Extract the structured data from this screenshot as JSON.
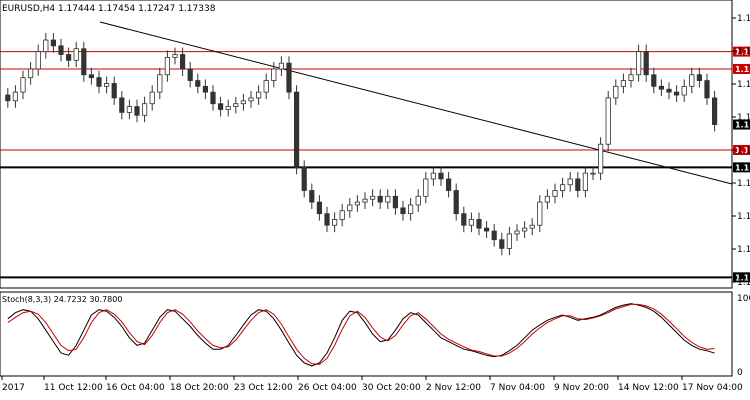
{
  "chart_data": {
    "type": "candlestick",
    "title": "EURUSD,H4  1.17444 1.17454 1.17247 1.17338",
    "x_ticks": [
      "2017",
      "11 Oct 12:00",
      "16 Oct 04:00",
      "18 Oct 20:00",
      "23 Oct 12:00",
      "26 Oct 04:00",
      "30 Oct 20:00",
      "2 Nov 12:00",
      "7 Nov 04:00",
      "9 Nov 20:00",
      "14 Nov 12:00",
      "17 Nov 04:00"
    ],
    "right_axis_labels": [
      "1.1",
      "1.1",
      "1.1",
      "1.1",
      "1.1",
      "1.1",
      "1.1",
      "1.1",
      "1.1"
    ],
    "resistance_levels": [
      {
        "label": "1.1",
        "price": 1.186,
        "color": "#cc0000"
      },
      {
        "label": "1.1",
        "price": 1.183,
        "color": "#cc0000"
      },
      {
        "label": "1.1",
        "price": 1.169,
        "color": "#cc0000"
      },
      {
        "label": "1.1",
        "price": 1.166,
        "color": "#000000"
      },
      {
        "label": "1.1",
        "price": 1.147,
        "color": "#000000"
      }
    ],
    "current_price_label": "1.1",
    "closes": [
      1.1775,
      1.179,
      1.1815,
      1.183,
      1.186,
      1.188,
      1.187,
      1.1855,
      1.1845,
      1.1865,
      1.182,
      1.1815,
      1.18,
      1.1805,
      1.178,
      1.1755,
      1.1765,
      1.175,
      1.177,
      1.179,
      1.182,
      1.185,
      1.1855,
      1.183,
      1.181,
      1.18,
      1.179,
      1.177,
      1.176,
      1.1765,
      1.177,
      1.1775,
      1.178,
      1.179,
      1.181,
      1.183,
      1.184,
      1.179,
      1.166,
      1.162,
      1.16,
      1.158,
      1.156,
      1.157,
      1.1585,
      1.1595,
      1.16,
      1.1605,
      1.161,
      1.16,
      1.161,
      1.159,
      1.158,
      1.1595,
      1.161,
      1.164,
      1.165,
      1.164,
      1.162,
      1.158,
      1.156,
      1.157,
      1.1555,
      1.155,
      1.1535,
      1.152,
      1.1545,
      1.155,
      1.1555,
      1.156,
      1.16,
      1.161,
      1.162,
      1.163,
      1.164,
      1.162,
      1.165,
      1.165,
      1.17,
      1.178,
      1.18,
      1.181,
      1.182,
      1.186,
      1.182,
      1.18,
      1.1795,
      1.179,
      1.1785,
      1.18,
      1.182,
      1.181,
      1.178,
      1.1734
    ],
    "ylim": [
      1.1455,
      1.1925
    ],
    "oscillator": {
      "label": "Stoch(8,3,3) 24.7232 30.7800",
      "levels": [
        100,
        0
      ],
      "ylim": [
        0,
        100
      ],
      "main": [
        70,
        78,
        82,
        80,
        70,
        55,
        40,
        25,
        22,
        35,
        55,
        75,
        82,
        80,
        72,
        60,
        45,
        35,
        38,
        55,
        72,
        82,
        80,
        70,
        60,
        48,
        38,
        30,
        30,
        35,
        48,
        62,
        75,
        82,
        80,
        70,
        55,
        38,
        22,
        12,
        8,
        12,
        25,
        45,
        68,
        80,
        78,
        65,
        50,
        40,
        42,
        55,
        70,
        78,
        75,
        65,
        55,
        45,
        40,
        35,
        30,
        28,
        25,
        22,
        20,
        22,
        28,
        35,
        45,
        55,
        62,
        68,
        72,
        75,
        72,
        68,
        70,
        72,
        75,
        80,
        85,
        88,
        90,
        88,
        85,
        80,
        72,
        62,
        52,
        42,
        35,
        30,
        28,
        24.7
      ],
      "signal": [
        65,
        72,
        78,
        80,
        76,
        65,
        50,
        35,
        28,
        30,
        45,
        65,
        78,
        82,
        76,
        66,
        52,
        40,
        36,
        48,
        65,
        78,
        82,
        76,
        66,
        54,
        44,
        35,
        32,
        33,
        42,
        55,
        68,
        78,
        82,
        76,
        63,
        46,
        30,
        18,
        11,
        10,
        18,
        35,
        56,
        74,
        80,
        72,
        58,
        46,
        41,
        48,
        62,
        74,
        78,
        70,
        60,
        50,
        43,
        38,
        33,
        29,
        27,
        24,
        21,
        21,
        25,
        31,
        40,
        50,
        58,
        65,
        70,
        74,
        74,
        70,
        69,
        71,
        74,
        78,
        83,
        86,
        89,
        89,
        87,
        83,
        76,
        67,
        57,
        47,
        39,
        33,
        30,
        30.8
      ]
    },
    "osc_right_labels": [
      "100",
      "0"
    ]
  }
}
